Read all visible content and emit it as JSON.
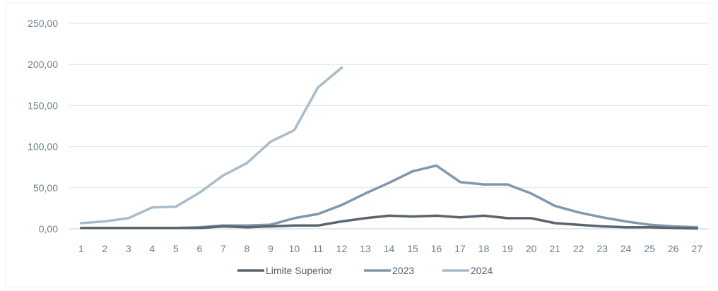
{
  "chart_data": {
    "type": "line",
    "categories": [
      "1",
      "2",
      "3",
      "4",
      "5",
      "6",
      "7",
      "8",
      "9",
      "10",
      "11",
      "12",
      "13",
      "14",
      "15",
      "16",
      "17",
      "18",
      "19",
      "20",
      "21",
      "22",
      "23",
      "24",
      "25",
      "26",
      "27"
    ],
    "y_tick_labels": [
      "0,00",
      "50,00",
      "100,00",
      "150,00",
      "200,00",
      "250,00"
    ],
    "ylim": [
      0,
      250
    ],
    "grid": true,
    "legend_position": "bottom",
    "series": [
      {
        "name": "Limite Superior",
        "color": "#5b6570",
        "values": [
          1,
          1,
          1,
          1,
          1,
          1,
          3,
          2,
          3,
          4,
          4,
          9,
          13,
          16,
          15,
          16,
          14,
          16,
          13,
          13,
          7,
          5,
          3,
          2,
          2,
          1,
          0.5
        ]
      },
      {
        "name": "2023",
        "color": "#7f98ab",
        "values": [
          1,
          1,
          1,
          1,
          1,
          2,
          4,
          4,
          5,
          13,
          18,
          29,
          43,
          56,
          70,
          77,
          57,
          54,
          54,
          43,
          28,
          20,
          14,
          9,
          5,
          3,
          2
        ]
      },
      {
        "name": "2024",
        "color": "#a9bccb",
        "values": [
          7,
          9,
          13,
          26,
          27,
          44,
          65,
          80,
          106,
          120,
          172,
          196,
          null,
          null,
          null,
          null,
          null,
          null,
          null,
          null,
          null,
          null,
          null,
          null,
          null,
          null,
          null
        ]
      }
    ]
  }
}
